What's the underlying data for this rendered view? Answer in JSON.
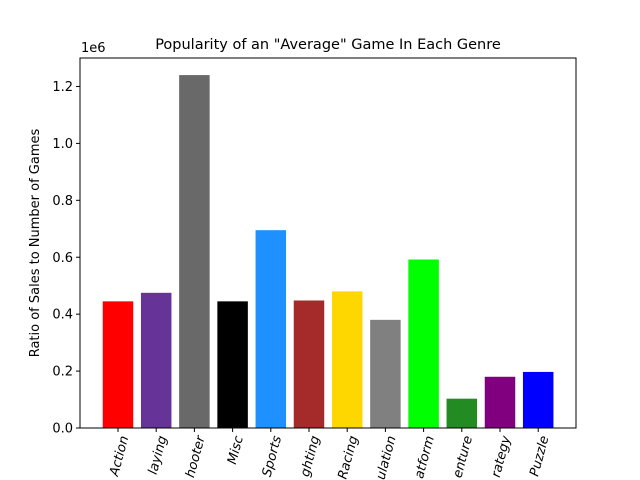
{
  "chart_data": {
    "type": "bar",
    "title": "Popularity of an \"Average\" Game In Each Genre",
    "xlabel": "",
    "ylabel": "Ratio of Sales to Number of Games",
    "y_offset_label": "1e6",
    "ylim": [
      0,
      1300000
    ],
    "yticks": [
      0,
      200000,
      400000,
      600000,
      800000,
      1000000,
      1200000
    ],
    "ytick_labels": [
      "0.0",
      "0.2",
      "0.4",
      "0.6",
      "0.8",
      "1.0",
      "1.2"
    ],
    "grid": false,
    "categories": [
      "Action",
      "Role-Playing",
      "Shooter",
      "Misc",
      "Sports",
      "Fighting",
      "Racing",
      "Simulation",
      "Platform",
      "Adventure",
      "Strategy",
      "Puzzle"
    ],
    "tick_labels_visible": [
      "Action",
      "laying",
      "hooter",
      "Misc",
      "Sports",
      "ghting",
      "Racing",
      "ulation",
      "atform",
      "enture",
      "rategy",
      "Puzzle"
    ],
    "values": [
      445000,
      475000,
      1240000,
      445000,
      695000,
      448000,
      480000,
      380000,
      592000,
      103000,
      180000,
      197000
    ],
    "colors": [
      "#ff0000",
      "#663399",
      "#696969",
      "#000000",
      "#1e90ff",
      "#a52a2a",
      "#ffd700",
      "#808080",
      "#00ff00",
      "#228b22",
      "#800080",
      "#0000ff"
    ]
  }
}
